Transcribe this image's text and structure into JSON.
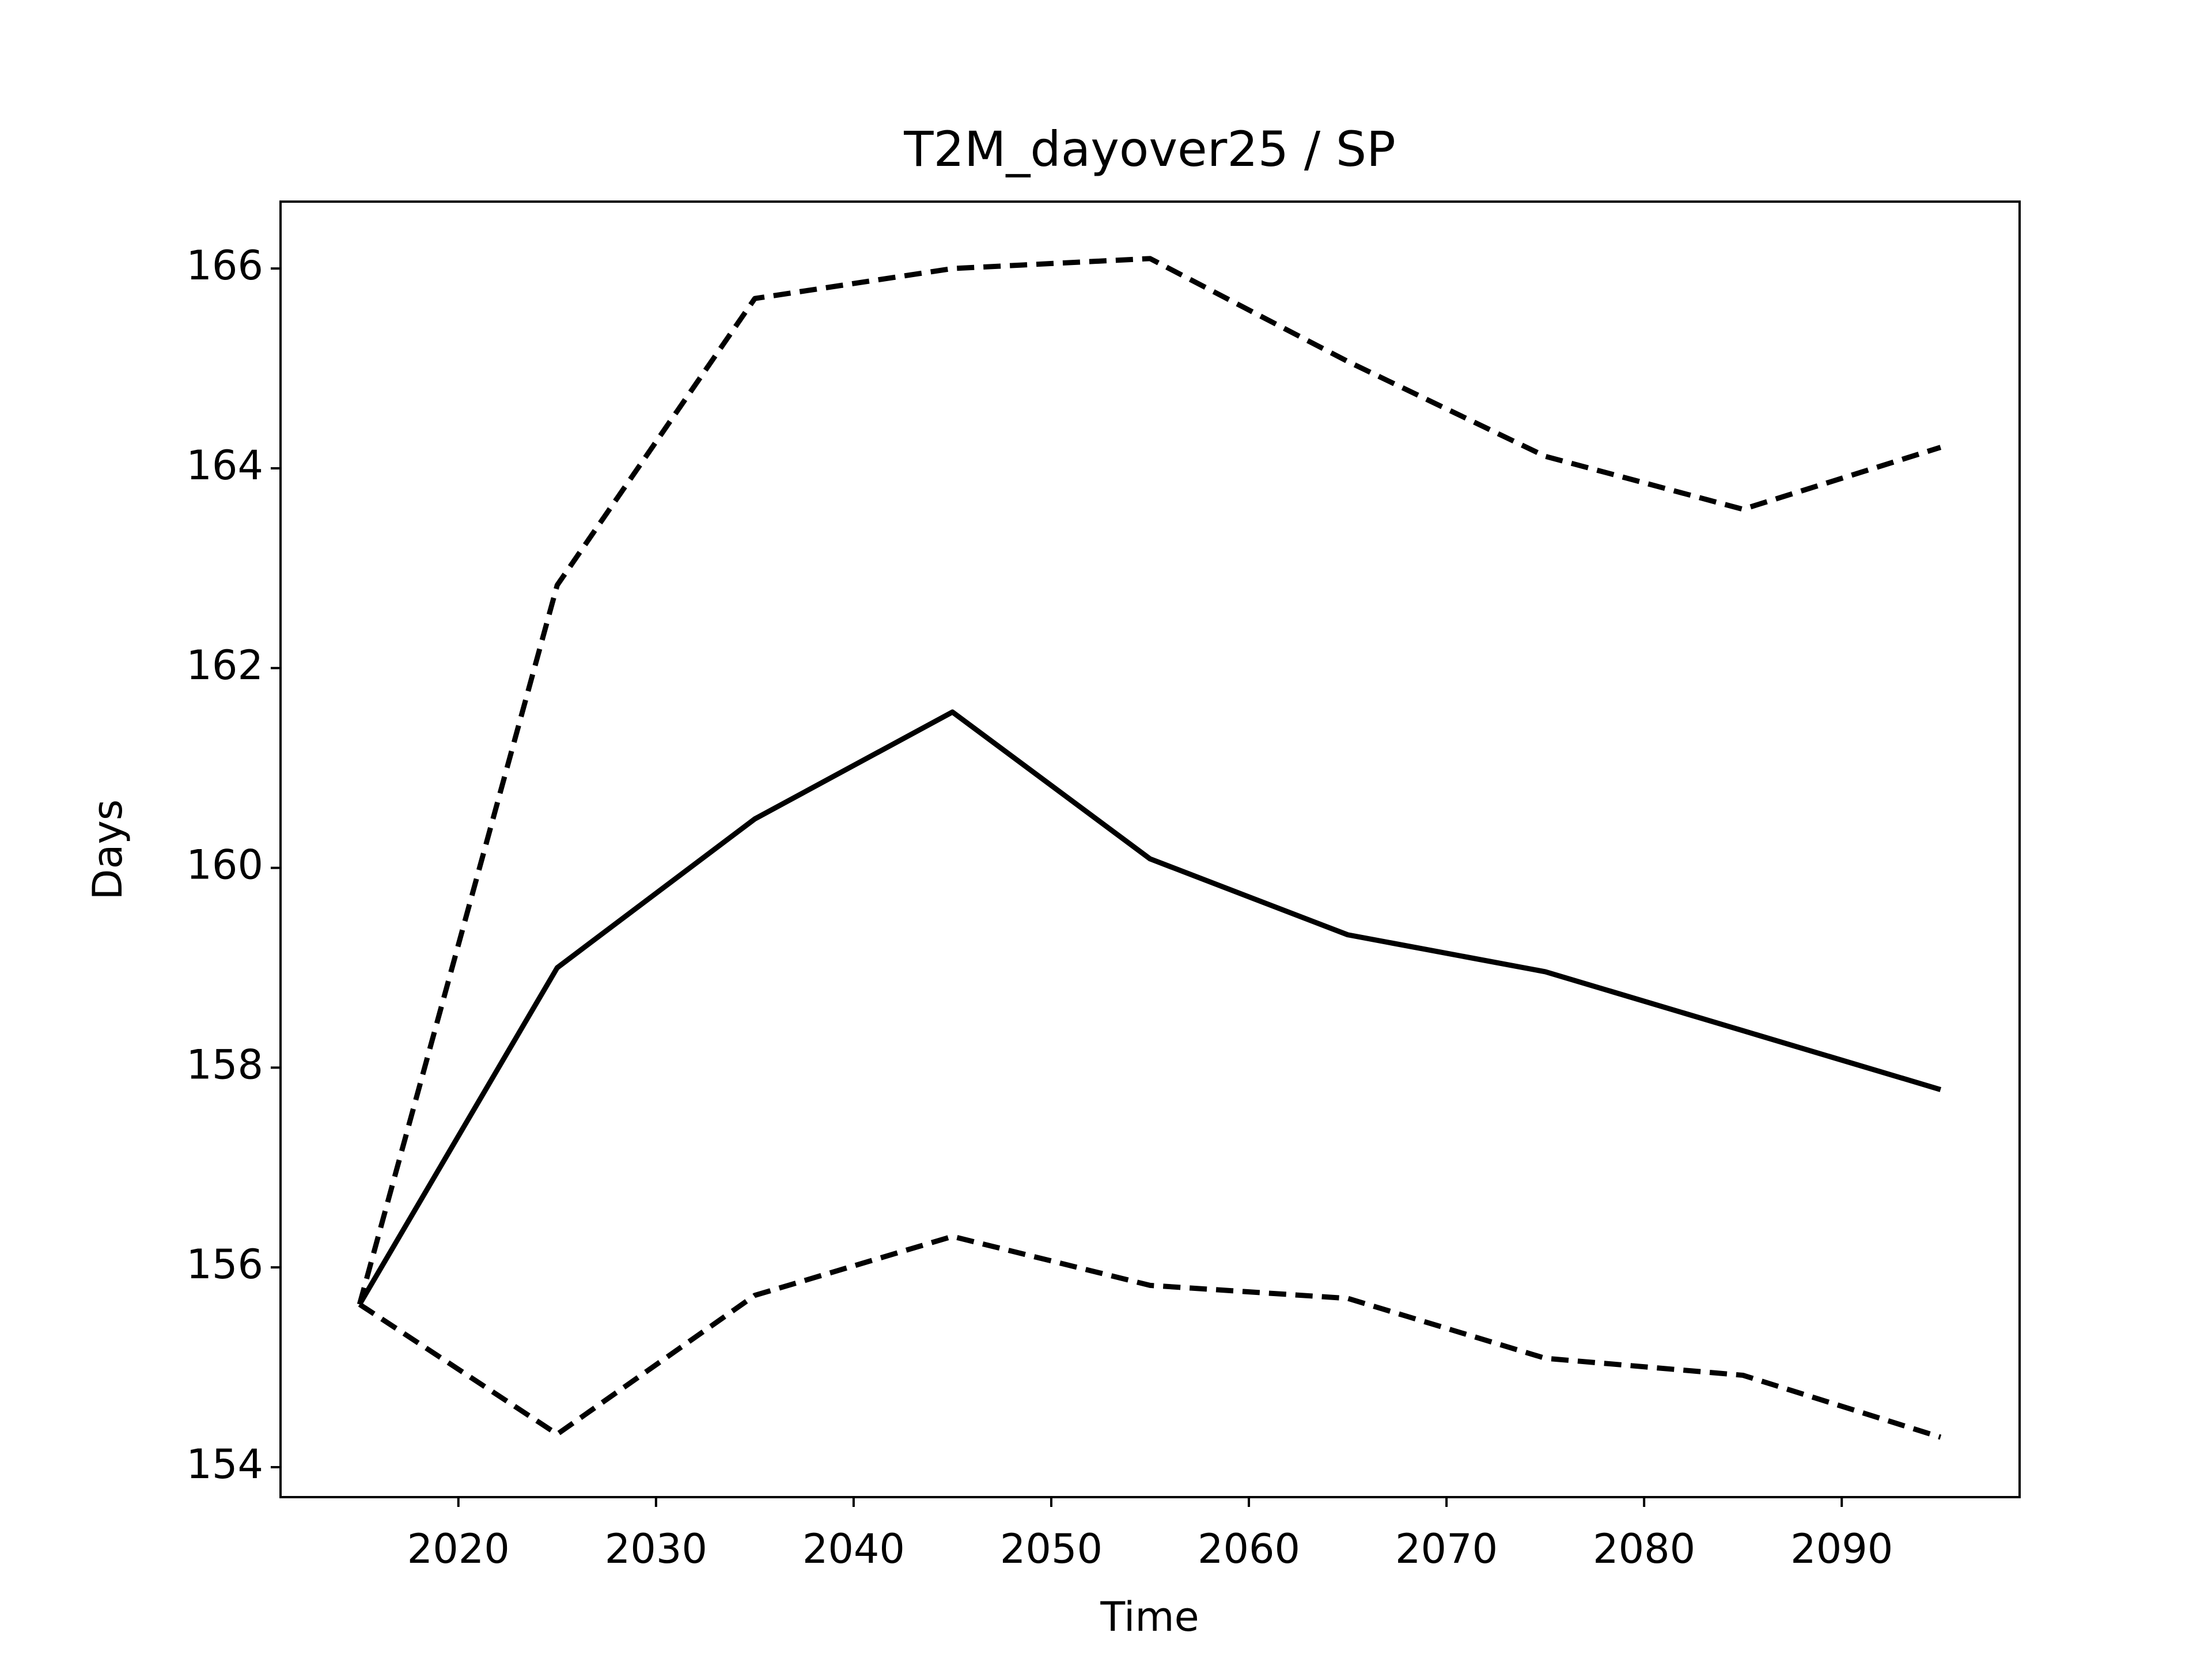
{
  "chart_data": {
    "type": "line",
    "title": "T2M_dayover25 / SP",
    "x_label": "Time",
    "y_label": "Days",
    "x": [
      2015,
      2025,
      2035,
      2045,
      2055,
      2065,
      2075,
      2085,
      2095
    ],
    "series": [
      {
        "color": "#000000",
        "style": "solid",
        "values": [
          155.63,
          159.0,
          160.49,
          161.56,
          160.09,
          159.33,
          158.96,
          158.37,
          157.78
        ]
      },
      {
        "color": "#000000",
        "style": "dashed",
        "values": [
          155.63,
          162.83,
          165.7,
          166.0,
          166.1,
          165.07,
          164.12,
          163.59,
          164.21
        ]
      },
      {
        "color": "#000000",
        "style": "dashed",
        "values": [
          155.63,
          154.33,
          155.72,
          156.31,
          155.82,
          155.69,
          155.09,
          154.92,
          154.3
        ]
      }
    ],
    "xlim": [
      2011,
      2099
    ],
    "xticks": [
      2020,
      2030,
      2040,
      2050,
      2060,
      2070,
      2080,
      2090
    ],
    "ylim": [
      153.7,
      166.67
    ],
    "yticks": [
      154,
      156,
      158,
      160,
      162,
      164,
      166
    ],
    "grid": false
  }
}
